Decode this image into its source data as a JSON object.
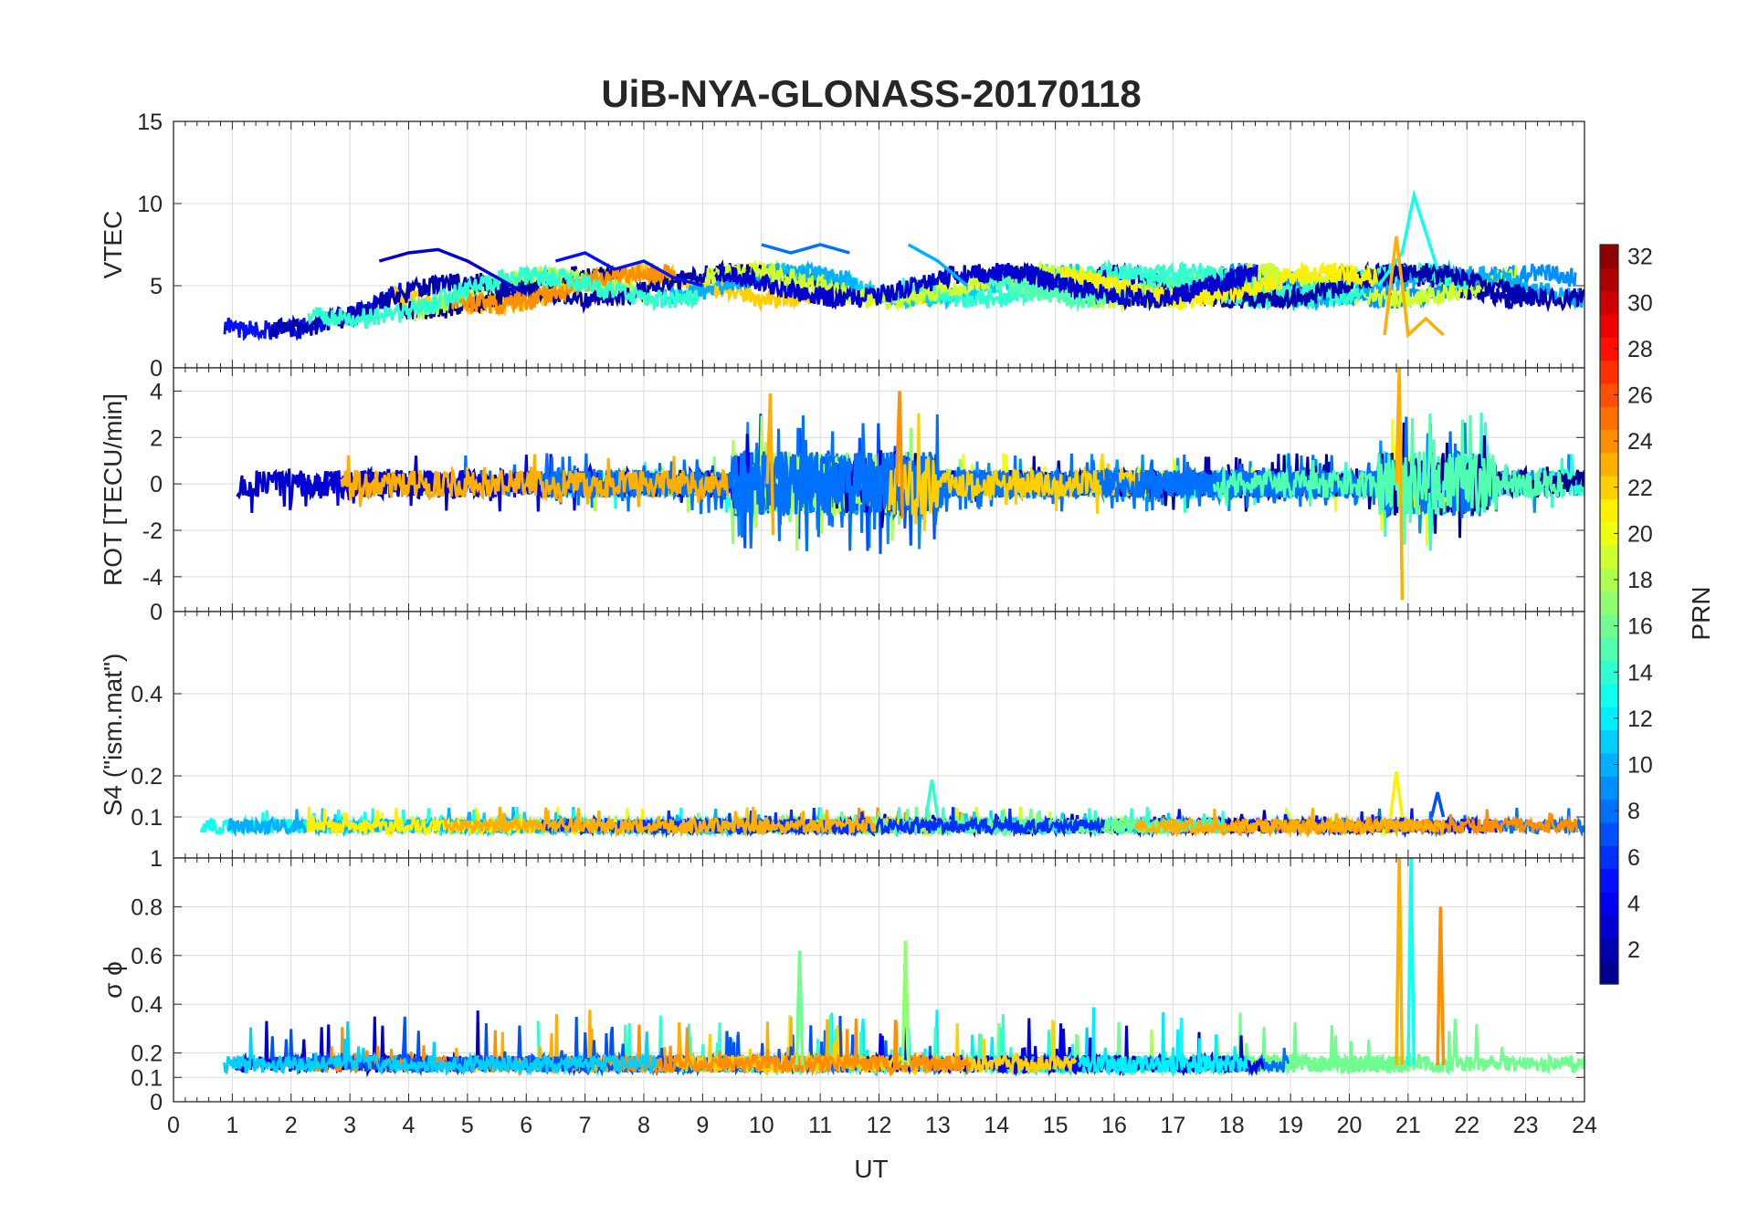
{
  "chart_data": {
    "title": "UiB-NYA-GLONASS-20170118",
    "type": "line",
    "xlabel": "UT",
    "xlim": [
      0,
      24
    ],
    "xticks": [
      "0",
      "1",
      "2",
      "3",
      "4",
      "5",
      "6",
      "7",
      "8",
      "9",
      "10",
      "11",
      "12",
      "13",
      "14",
      "15",
      "16",
      "17",
      "18",
      "19",
      "20",
      "21",
      "22",
      "23",
      "24"
    ],
    "grid": true,
    "panels": [
      {
        "id": "vtec",
        "ylabel": "VTEC",
        "ylim": [
          0,
          15
        ],
        "yticks": [
          "0",
          "5",
          "10",
          "15"
        ],
        "ytick_values": [
          0,
          5,
          10,
          15
        ],
        "series": [
          {
            "prn": 3,
            "x": [
              3.5,
              4.0,
              4.5,
              5.0,
              5.5,
              6.0
            ],
            "y": [
              6.5,
              7.0,
              7.2,
              6.5,
              5.5,
              4.5
            ]
          },
          {
            "prn": 5,
            "x": [
              6.5,
              7.0,
              7.5,
              8.0,
              8.5,
              9.0
            ],
            "y": [
              6.5,
              7.0,
              6.0,
              6.5,
              5.5,
              5.0
            ]
          },
          {
            "prn": 8,
            "x": [
              10.0,
              10.5,
              11.0,
              11.5
            ],
            "y": [
              7.5,
              7.0,
              7.5,
              7.0
            ]
          },
          {
            "prn": 10,
            "x": [
              12.5,
              13.0,
              13.5
            ],
            "y": [
              7.5,
              6.5,
              5.0
            ]
          },
          {
            "prn": 13,
            "x": [
              20.5,
              20.9,
              21.1,
              21.5
            ],
            "y": [
              5.0,
              7.0,
              10.5,
              6.0
            ]
          },
          {
            "prn": 23,
            "x": [
              20.6,
              20.8,
              21.0,
              21.3,
              21.6
            ],
            "y": [
              2.0,
              8.0,
              2.0,
              3.0,
              2.0
            ]
          }
        ]
      },
      {
        "id": "rot",
        "ylabel": "ROT [TECU/min]",
        "ylim": [
          -5.5,
          5
        ],
        "yticks": [
          "-4",
          "-2",
          "0",
          "2",
          "4"
        ],
        "ytick_values": [
          -4,
          -2,
          0,
          2,
          4
        ],
        "series": [
          {
            "prn": 23,
            "x": [
              10.1,
              10.15,
              10.2
            ],
            "y": [
              0.0,
              3.9,
              -2.2
            ]
          },
          {
            "prn": 24,
            "x": [
              12.3,
              12.35,
              12.4
            ],
            "y": [
              0.0,
              4.0,
              -1.5
            ]
          },
          {
            "prn": 23,
            "x": [
              20.8,
              20.85,
              20.9
            ],
            "y": [
              0.0,
              5.0,
              -5.0
            ]
          }
        ]
      },
      {
        "id": "s4",
        "ylabel": "S4 (\"ism.mat\")",
        "ylim": [
          0,
          0.6
        ],
        "yticks": [
          "0.1",
          "0.2",
          "0.4"
        ],
        "ytick_values": [
          0.1,
          0.2,
          0.4
        ],
        "top_tick_label": "0",
        "series": [
          {
            "prn": 14,
            "x": [
              12.8,
              12.9,
              13.0
            ],
            "y": [
              0.1,
              0.19,
              0.1
            ]
          },
          {
            "prn": 21,
            "x": [
              20.7,
              20.8,
              20.9
            ],
            "y": [
              0.1,
              0.21,
              0.1
            ]
          },
          {
            "prn": 7,
            "x": [
              21.4,
              21.5,
              21.6
            ],
            "y": [
              0.1,
              0.16,
              0.1
            ]
          }
        ]
      },
      {
        "id": "sigma_phi",
        "ylabel": "σ ϕ",
        "ylim": [
          0,
          1
        ],
        "yticks": [
          "0",
          "0.1",
          "0.2",
          "0.4",
          "0.6",
          "0.8",
          "1"
        ],
        "ytick_values": [
          0,
          0.1,
          0.2,
          0.4,
          0.6,
          0.8,
          1
        ],
        "series": [
          {
            "prn": 23,
            "x": [
              20.8,
              20.85,
              20.9
            ],
            "y": [
              0.15,
              1.0,
              0.15
            ]
          },
          {
            "prn": 13,
            "x": [
              21.0,
              21.05,
              21.1
            ],
            "y": [
              0.15,
              1.0,
              0.15
            ]
          },
          {
            "prn": 24,
            "x": [
              21.5,
              21.55,
              21.6
            ],
            "y": [
              0.15,
              0.8,
              0.15
            ]
          },
          {
            "prn": 17,
            "x": [
              12.4,
              12.45,
              12.5
            ],
            "y": [
              0.15,
              0.66,
              0.15
            ]
          },
          {
            "prn": 16,
            "x": [
              10.6,
              10.65,
              10.7
            ],
            "y": [
              0.15,
              0.62,
              0.15
            ]
          }
        ]
      }
    ],
    "colorbar": {
      "label": "PRN",
      "colormap": "jet",
      "range": [
        1,
        32
      ],
      "ticks": [
        "2",
        "4",
        "6",
        "8",
        "10",
        "12",
        "14",
        "16",
        "18",
        "20",
        "22",
        "24",
        "26",
        "28",
        "30",
        "32"
      ],
      "tick_values": [
        2,
        4,
        6,
        8,
        10,
        12,
        14,
        16,
        18,
        20,
        22,
        24,
        26,
        28,
        30,
        32
      ]
    }
  }
}
